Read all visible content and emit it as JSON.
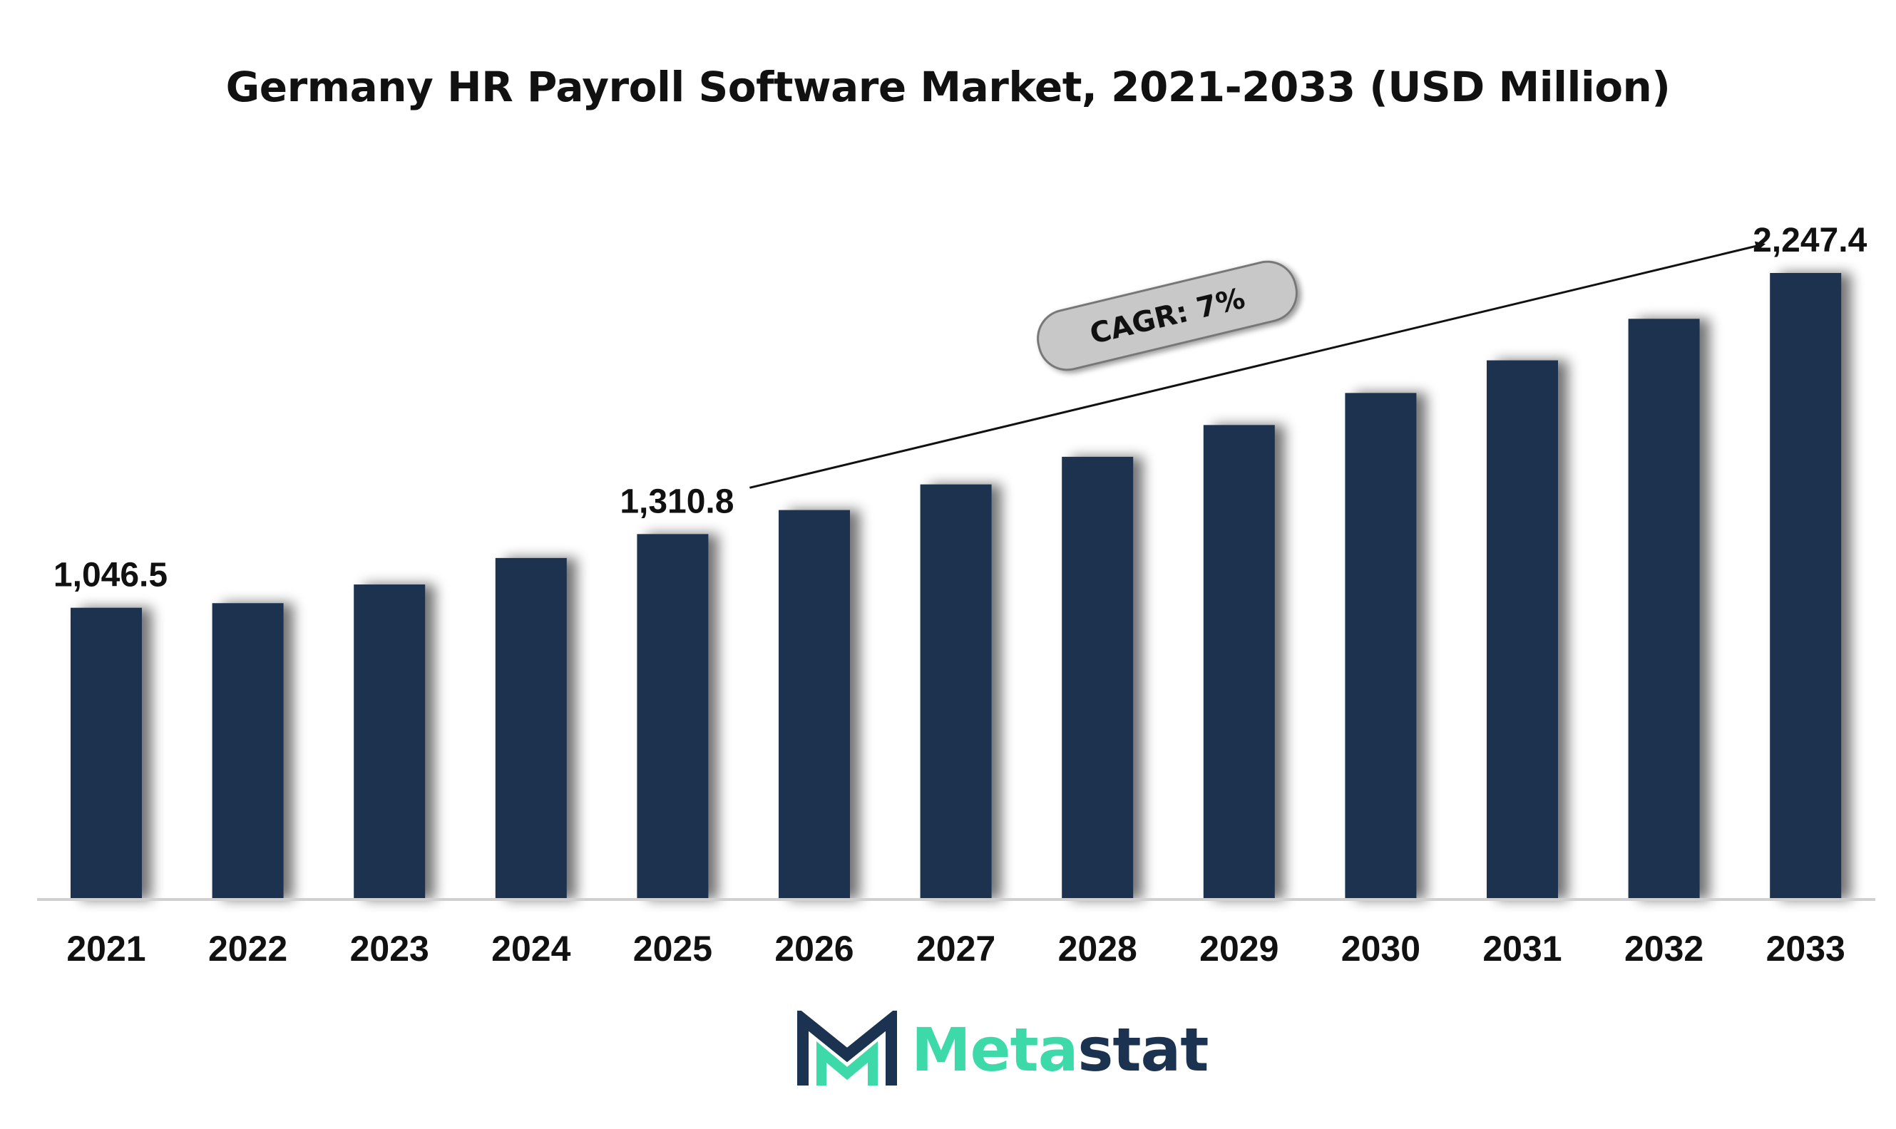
{
  "chart_data": {
    "type": "bar",
    "title": "Germany HR Payroll Software Market, 2021-2033 (USD Million)",
    "xlabel": "",
    "ylabel": "",
    "categories": [
      "2021",
      "2022",
      "2023",
      "2024",
      "2025",
      "2026",
      "2027",
      "2028",
      "2029",
      "2030",
      "2031",
      "2032",
      "2033"
    ],
    "values": [
      1046.5,
      1063,
      1130,
      1225,
      1310.8,
      1397,
      1489,
      1588,
      1702,
      1817,
      1934,
      2083,
      2247.4
    ],
    "data_labels": [
      {
        "category": "2021",
        "text": "1,046.5"
      },
      {
        "category": "2025",
        "text": "1,310.8"
      },
      {
        "category": "2033",
        "text": "2,247.4"
      }
    ],
    "ylim": [
      0,
      2500
    ],
    "grid": false,
    "legend": "none",
    "bar_color": "#1b3350",
    "annotation": {
      "text": "CAGR: 7%",
      "from": "2025",
      "to": "2033"
    }
  },
  "brand": {
    "meta": "Meta",
    "stat": "stat",
    "meta_color": "#3ed9a9",
    "stat_color": "#1b3350"
  }
}
